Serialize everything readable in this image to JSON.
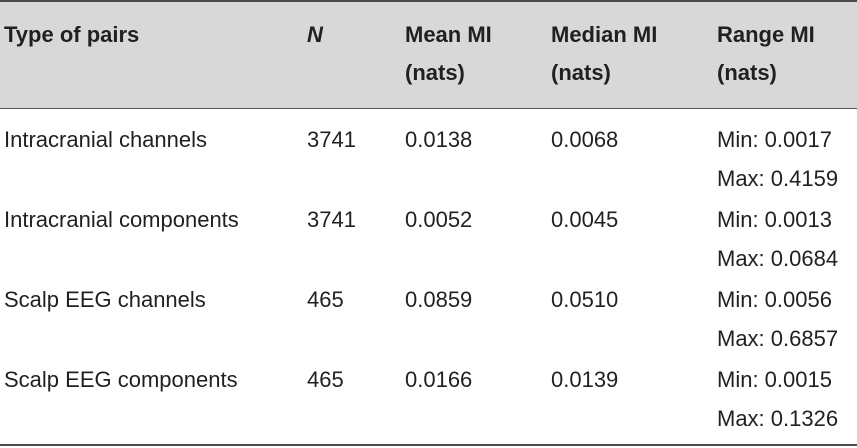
{
  "table": {
    "headers": [
      {
        "line1": "Type of pairs",
        "line2": ""
      },
      {
        "line1": "N",
        "line2": ""
      },
      {
        "line1": "Mean MI",
        "line2": "(nats)"
      },
      {
        "line1": "Median MI",
        "line2": "(nats)"
      },
      {
        "line1": "Range MI",
        "line2": "(nats)"
      }
    ],
    "rows": [
      {
        "type": "Intracranial channels",
        "n": "3741",
        "mean": "0.0138",
        "median": "0.0068",
        "min": "Min: 0.0017",
        "max": "Max: 0.4159"
      },
      {
        "type": "Intracranial components",
        "n": "3741",
        "mean": "0.0052",
        "median": "0.0045",
        "min": "Min: 0.0013",
        "max": "Max: 0.0684"
      },
      {
        "type": "Scalp EEG channels",
        "n": "465",
        "mean": "0.0859",
        "median": "0.0510",
        "min": "Min: 0.0056",
        "max": "Max: 0.6857"
      },
      {
        "type": "Scalp EEG components",
        "n": "465",
        "mean": "0.0166",
        "median": "0.0139",
        "min": "Min: 0.0015",
        "max": "Max: 0.1326"
      }
    ]
  }
}
